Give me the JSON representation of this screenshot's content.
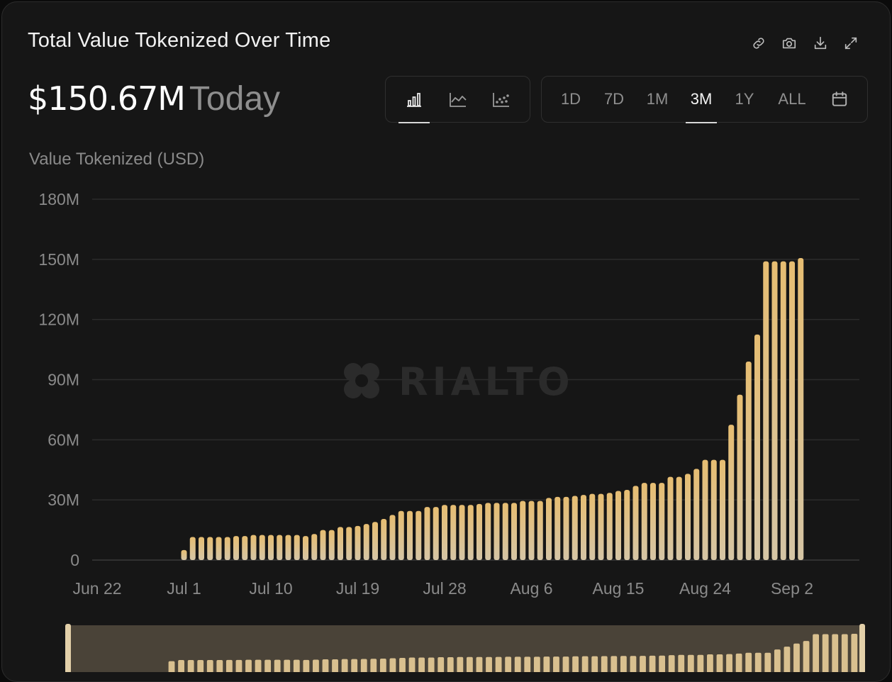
{
  "title": "Total Value Tokenized Over Time",
  "headline": {
    "value": "$150.67M",
    "suffix": "Today"
  },
  "toolbar_icons": [
    "link-icon",
    "camera-icon",
    "download-icon",
    "expand-icon"
  ],
  "chart_type_options": [
    {
      "icon": "bar-chart-icon",
      "active": true
    },
    {
      "icon": "line-chart-icon",
      "active": false
    },
    {
      "icon": "scatter-chart-icon",
      "active": false
    }
  ],
  "range_options": [
    {
      "label": "1D",
      "active": false
    },
    {
      "label": "7D",
      "active": false
    },
    {
      "label": "1M",
      "active": false
    },
    {
      "label": "3M",
      "active": true
    },
    {
      "label": "1Y",
      "active": false
    },
    {
      "label": "ALL",
      "active": false
    }
  ],
  "calendar_icon": "calendar-icon",
  "watermark": "RIALTO",
  "colors": {
    "bar_top": "#e6bd72",
    "bar_bottom": "#d5c5a5",
    "background": "#161616",
    "grid": "#2f2f2f"
  },
  "chart_data": {
    "type": "bar",
    "ylabel": "Value Tokenized (USD)",
    "y_ticks": [
      "0",
      "30M",
      "60M",
      "90M",
      "120M",
      "150M",
      "180M"
    ],
    "ylim": [
      0,
      180
    ],
    "y_unit": "M USD",
    "x_tick_labels": [
      "Jun 22",
      "Jul 1",
      "Jul 10",
      "Jul 19",
      "Jul 28",
      "Aug 6",
      "Aug 15",
      "Aug 24",
      "Sep 2"
    ],
    "x_start": "Jun 22",
    "grid": true,
    "values": [
      0,
      0,
      0,
      0,
      0,
      0,
      0,
      0,
      0,
      0,
      5,
      11.5,
      11.5,
      11.5,
      11.5,
      11.5,
      12,
      12,
      12.5,
      12.5,
      12.5,
      12.5,
      12.5,
      12.5,
      12,
      13,
      15,
      15,
      16.5,
      16.5,
      17,
      18,
      19,
      20.5,
      22.5,
      24.5,
      24.5,
      24.5,
      26.5,
      26.5,
      27.5,
      27.5,
      27.5,
      27.5,
      28,
      28.5,
      28.5,
      28.5,
      28.5,
      29.5,
      29.5,
      29.5,
      31,
      31.5,
      31.5,
      32,
      32.5,
      33,
      33,
      33.5,
      34.5,
      35,
      37,
      38.5,
      38.5,
      38.5,
      41.5,
      41.5,
      43,
      45.5,
      50,
      50,
      50,
      67.5,
      82.5,
      99,
      112.5,
      149,
      149,
      149,
      149,
      150.67
    ],
    "brush_range": [
      0,
      1
    ]
  }
}
